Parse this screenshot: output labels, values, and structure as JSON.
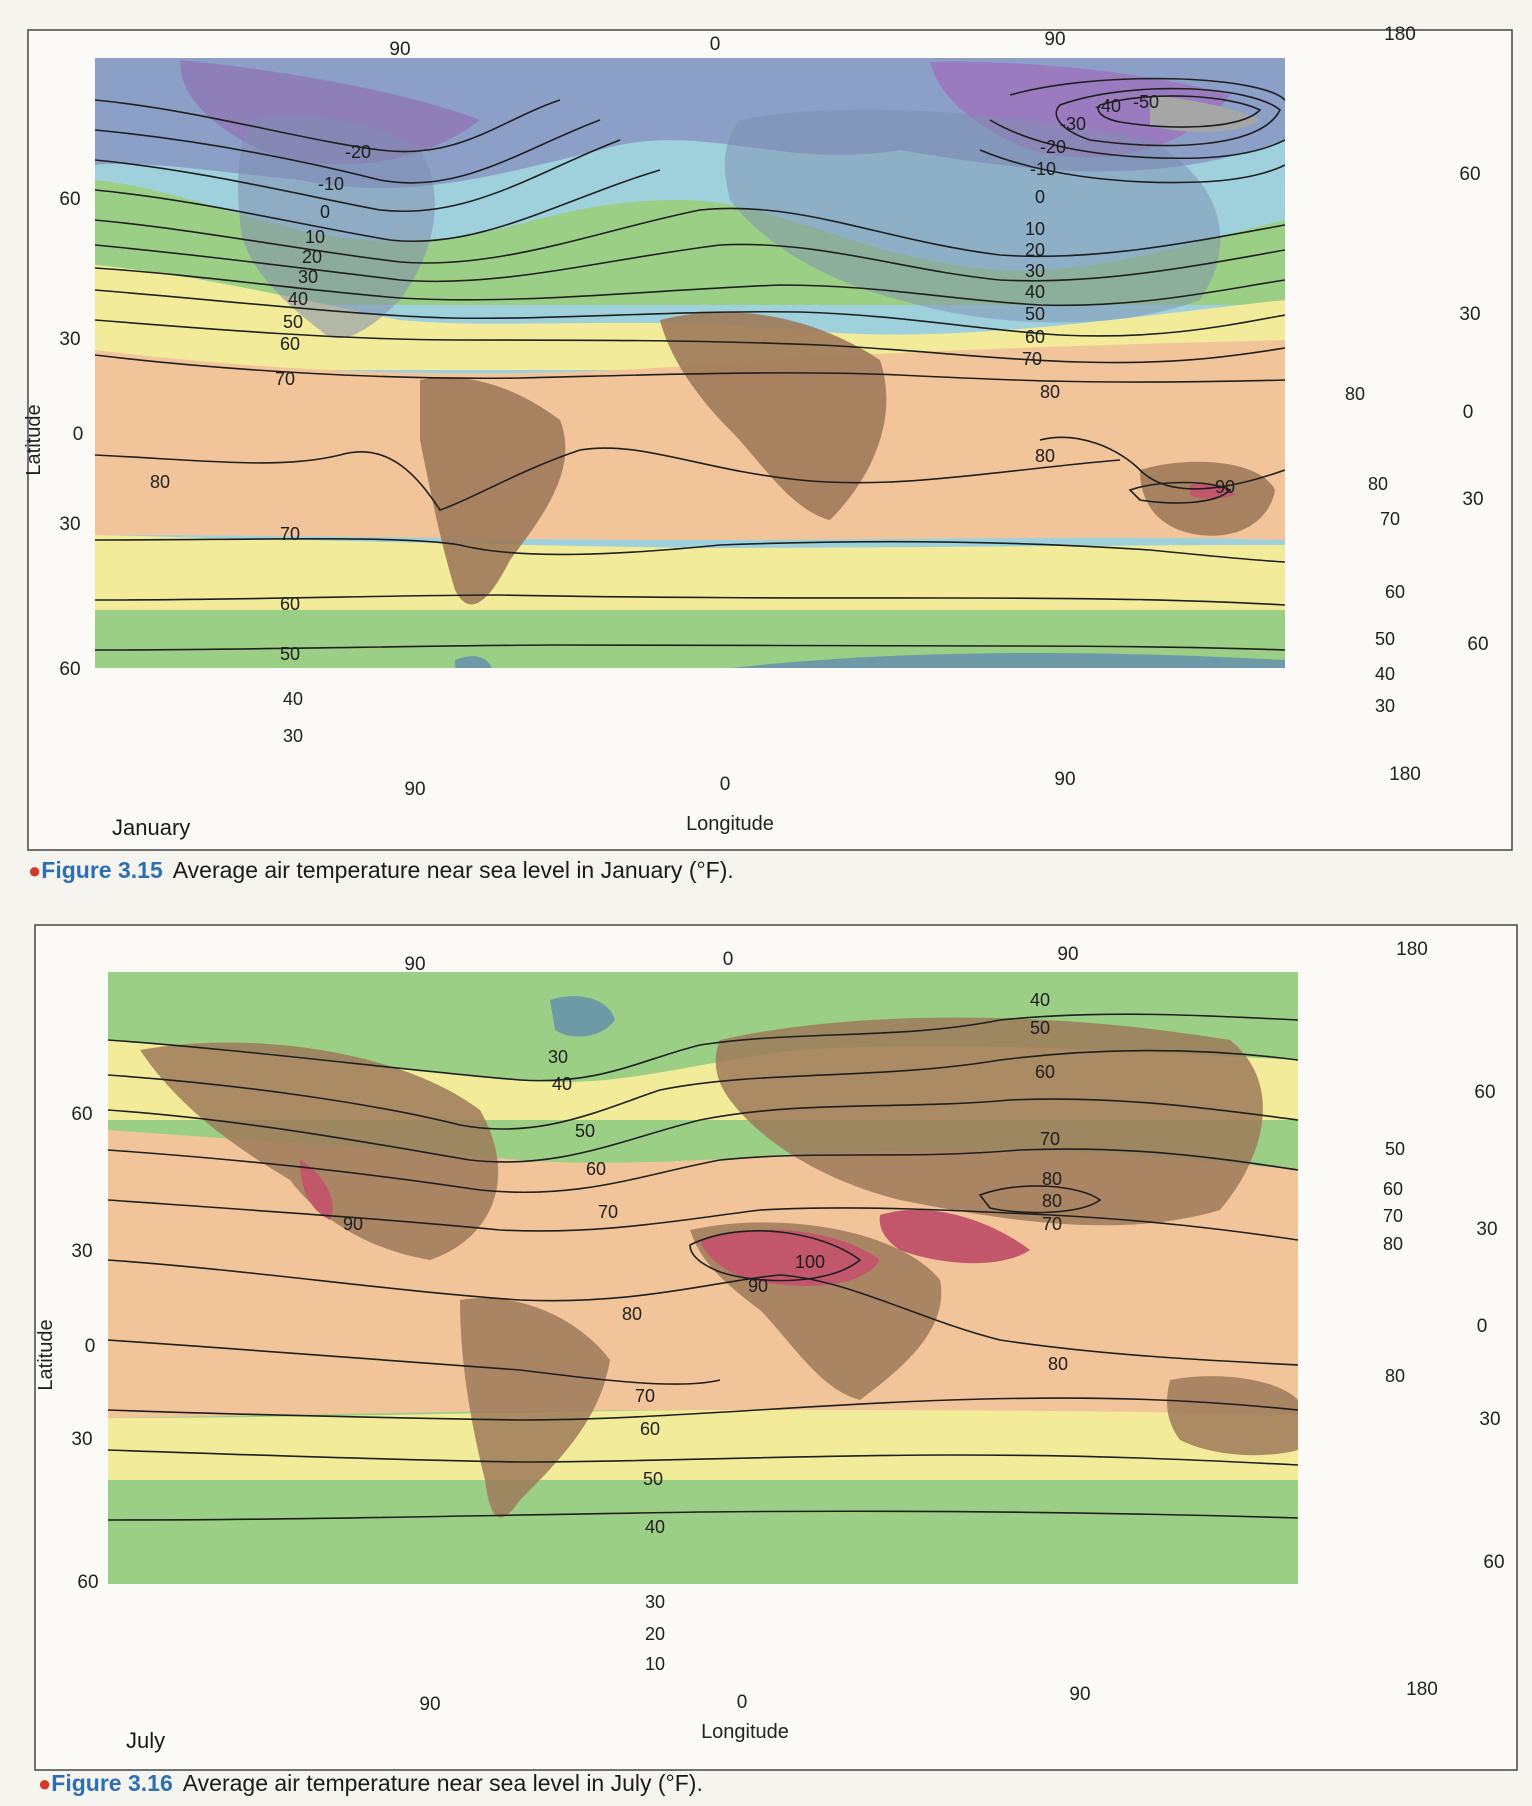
{
  "figures": [
    {
      "id": "jan",
      "month": "January",
      "axis_title_x": "Longitude",
      "axis_title_y": "Latitude",
      "caption_number": "Figure 3.15",
      "caption_text": "Average air temperature near sea level in January (°F).",
      "lon_top_labels": [
        "90",
        "0",
        "90",
        "180"
      ],
      "lon_bottom_labels": [
        "90",
        "0",
        "90",
        "180"
      ],
      "lat_left_labels": [
        "60",
        "30",
        "0",
        "30",
        "60"
      ],
      "lat_right_labels": [
        "60",
        "30",
        "0",
        "30",
        "60"
      ],
      "isotherm_labels": [
        "-20",
        "-10",
        "0",
        "10",
        "20",
        "30",
        "40",
        "50",
        "60",
        "70",
        "80",
        "70",
        "60",
        "50",
        "40",
        "30",
        "-50",
        "-40",
        "-30",
        "-20",
        "-10",
        "0",
        "10",
        "20",
        "30",
        "40",
        "50",
        "60",
        "70",
        "80",
        "80",
        "90",
        "80",
        "80",
        "70",
        "60",
        "50",
        "40",
        "30"
      ]
    },
    {
      "id": "jul",
      "month": "July",
      "axis_title_x": "Longitude",
      "axis_title_y": "Latitude",
      "caption_number": "Figure 3.16",
      "caption_text": "Average air temperature near sea level in July (°F).",
      "lon_top_labels": [
        "90",
        "0",
        "90",
        "180"
      ],
      "lon_bottom_labels": [
        "90",
        "0",
        "90",
        "180"
      ],
      "lat_left_labels": [
        "60",
        "30",
        "0",
        "30",
        "60"
      ],
      "lat_right_labels": [
        "60",
        "30",
        "0",
        "30",
        "60"
      ],
      "isotherm_labels": [
        "30",
        "40",
        "50",
        "60",
        "70",
        "90",
        "80",
        "70",
        "60",
        "50",
        "40",
        "30",
        "20",
        "10",
        "40",
        "50",
        "60",
        "70",
        "80",
        "80",
        "70",
        "100",
        "90",
        "80",
        "50",
        "60",
        "70",
        "80",
        "80"
      ]
    }
  ],
  "colors": {
    "band_purple": "#8f7fb8",
    "band_blue": "#8b9fc7",
    "band_teal": "#6d9aa6",
    "band_lightblue": "#9fd1dc",
    "band_green": "#9ccf86",
    "band_lightgreen": "#b7d98f",
    "band_yellow": "#f2ec9a",
    "band_orange": "#f2c49a",
    "band_peach": "#f0b993",
    "land_brown": "#9e7a5a",
    "land_red": "#c2566a",
    "caption_blue": "#2d6fb0",
    "bullet_red": "#d23b2a"
  }
}
